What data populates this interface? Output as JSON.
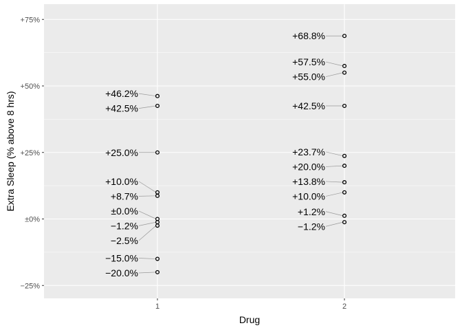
{
  "chart_data": {
    "type": "scatter",
    "xlabel": "Drug",
    "ylabel": "Extra Sleep (% above 8 hrs)",
    "categories": [
      "1",
      "2"
    ],
    "y_ticks": [
      {
        "value": -25,
        "label": "−25%"
      },
      {
        "value": 0,
        "label": "±0%"
      },
      {
        "value": 25,
        "label": "+25%"
      },
      {
        "value": 50,
        "label": "+50%"
      },
      {
        "value": 75,
        "label": "+75%"
      }
    ],
    "ylim": [
      -30,
      77
    ],
    "grid": true,
    "background": "#ebebeb",
    "grid_color": "#ffffff",
    "point_color": "#000000",
    "series": [
      {
        "group": "1",
        "points": [
          {
            "y": 46.2,
            "label": "+46.2%"
          },
          {
            "y": 42.5,
            "label": "+42.5%"
          },
          {
            "y": 25.0,
            "label": "+25.0%"
          },
          {
            "y": 10.0,
            "label": "+10.0%"
          },
          {
            "y": 8.7,
            "label": "+8.7%"
          },
          {
            "y": 0.0,
            "label": "±0.0%"
          },
          {
            "y": -1.2,
            "label": "−1.2%"
          },
          {
            "y": -2.5,
            "label": "−2.5%"
          },
          {
            "y": -15.0,
            "label": "−15.0%"
          },
          {
            "y": -20.0,
            "label": "−20.0%"
          }
        ]
      },
      {
        "group": "2",
        "points": [
          {
            "y": 68.8,
            "label": "+68.8%"
          },
          {
            "y": 57.5,
            "label": "+57.5%"
          },
          {
            "y": 55.0,
            "label": "+55.0%"
          },
          {
            "y": 42.5,
            "label": "+42.5%"
          },
          {
            "y": 23.7,
            "label": "+23.7%"
          },
          {
            "y": 20.0,
            "label": "+20.0%"
          },
          {
            "y": 13.8,
            "label": "+13.8%"
          },
          {
            "y": 10.0,
            "label": "+10.0%"
          },
          {
            "y": 1.2,
            "label": "+1.2%"
          },
          {
            "y": -1.2,
            "label": "−1.2%"
          }
        ]
      }
    ]
  }
}
